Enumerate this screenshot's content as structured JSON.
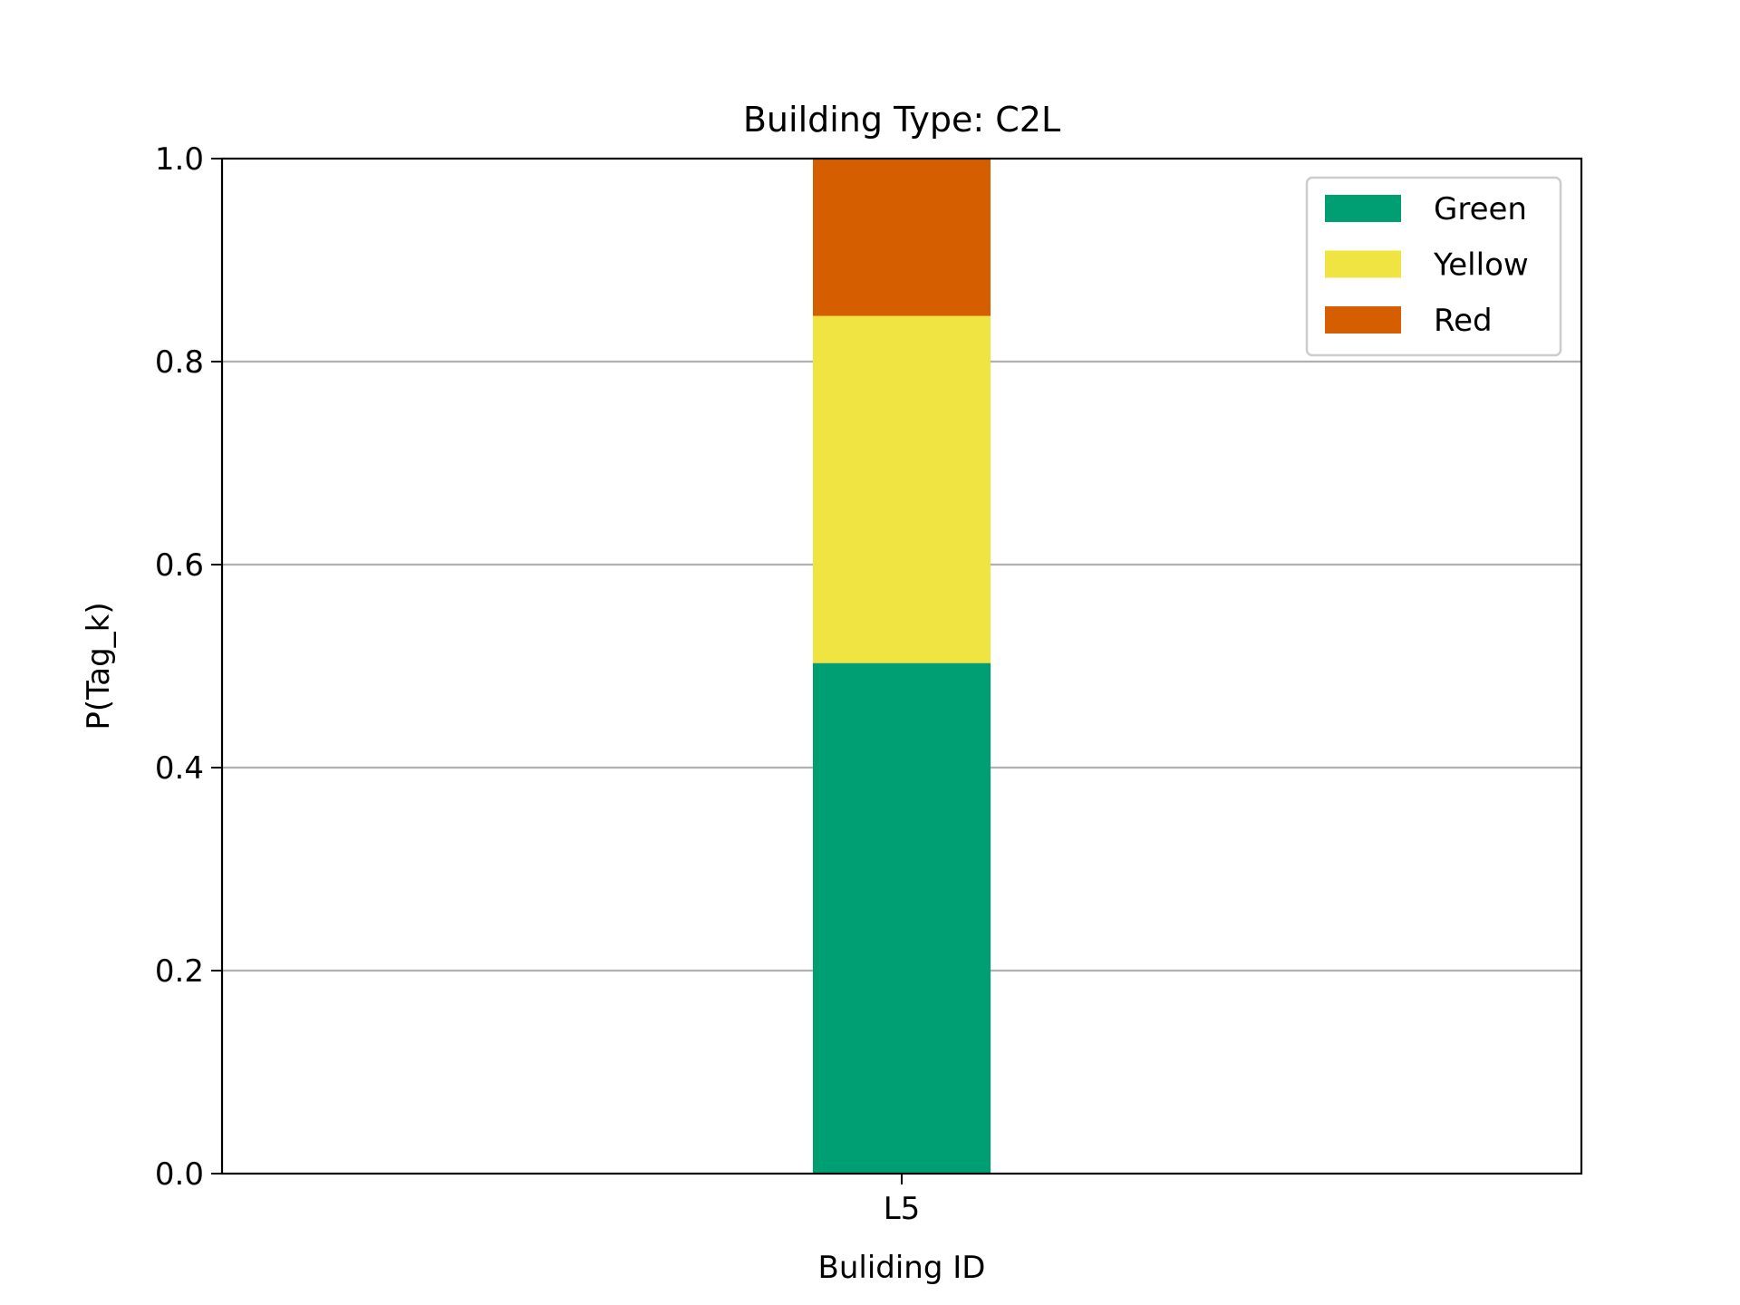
{
  "chart_data": {
    "type": "bar",
    "stacked": true,
    "title": "Building Type: C2L",
    "xlabel": "Buliding ID",
    "ylabel": "P(Tag_k)",
    "categories": [
      "L5"
    ],
    "series": [
      {
        "name": "Green",
        "values": [
          0.503
        ],
        "color": "#009e73"
      },
      {
        "name": "Yellow",
        "values": [
          0.342
        ],
        "color": "#f0e442"
      },
      {
        "name": "Red",
        "values": [
          0.155
        ],
        "color": "#d55e00"
      }
    ],
    "ylim": [
      0,
      1.0
    ],
    "yticks": [
      "0.0",
      "0.2",
      "0.4",
      "0.6",
      "0.8",
      "1.0"
    ],
    "grid": "y",
    "legend_position": "top-right"
  }
}
